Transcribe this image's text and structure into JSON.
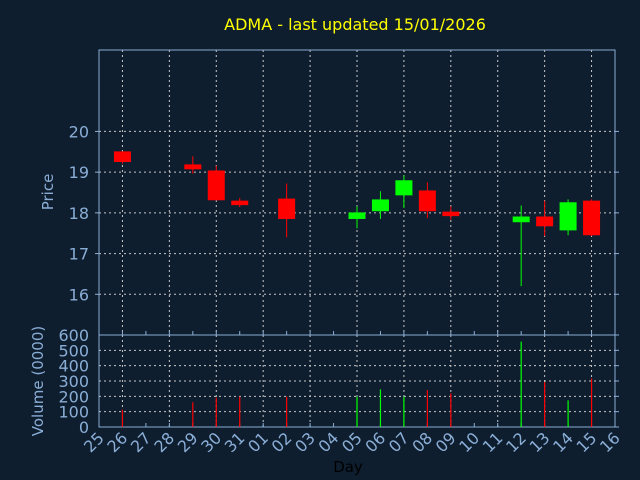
{
  "chart_data": [
    {
      "type": "candlestick",
      "title": "ADMA - last updated 15/01/2026",
      "xlabel": "Day",
      "ylabel": "Price",
      "ylim": [
        15,
        22
      ],
      "yticks": [
        16,
        17,
        18,
        19,
        20
      ],
      "grid": true,
      "x_tick_labels": [
        "25",
        "26",
        "27",
        "28",
        "29",
        "30",
        "31",
        "01",
        "02",
        "03",
        "04",
        "05",
        "06",
        "07",
        "08",
        "09",
        "10",
        "11",
        "12",
        "13",
        "14",
        "15",
        "16"
      ],
      "candles": [
        {
          "day": "26",
          "index": 1,
          "open": 19.51,
          "high": 19.51,
          "low": 19.21,
          "close": 19.25
        },
        {
          "day": "29",
          "index": 4,
          "open": 19.19,
          "high": 19.39,
          "low": 18.96,
          "close": 19.07
        },
        {
          "day": "30",
          "index": 5,
          "open": 19.04,
          "high": 19.16,
          "low": 18.31,
          "close": 18.31
        },
        {
          "day": "31",
          "index": 6,
          "open": 18.3,
          "high": 18.37,
          "low": 18.14,
          "close": 18.19
        },
        {
          "day": "02",
          "index": 8,
          "open": 18.35,
          "high": 18.72,
          "low": 17.4,
          "close": 17.85
        },
        {
          "day": "05",
          "index": 11,
          "open": 17.85,
          "high": 18.16,
          "low": 17.62,
          "close": 18.01
        },
        {
          "day": "06",
          "index": 12,
          "open": 18.04,
          "high": 18.53,
          "low": 17.85,
          "close": 18.33
        },
        {
          "day": "07",
          "index": 13,
          "open": 18.43,
          "high": 18.92,
          "low": 18.12,
          "close": 18.8
        },
        {
          "day": "08",
          "index": 14,
          "open": 18.55,
          "high": 18.75,
          "low": 17.87,
          "close": 18.04
        },
        {
          "day": "09",
          "index": 15,
          "open": 18.03,
          "high": 18.16,
          "low": 17.83,
          "close": 17.92
        },
        {
          "day": "12",
          "index": 18,
          "open": 17.77,
          "high": 18.18,
          "low": 16.2,
          "close": 17.91
        },
        {
          "day": "13",
          "index": 19,
          "open": 17.91,
          "high": 18.3,
          "low": 17.43,
          "close": 17.67
        },
        {
          "day": "14",
          "index": 20,
          "open": 17.57,
          "high": 18.33,
          "low": 17.45,
          "close": 18.26
        },
        {
          "day": "15",
          "index": 21,
          "open": 18.3,
          "high": 18.33,
          "low": 17.43,
          "close": 17.45
        }
      ]
    },
    {
      "type": "bar",
      "ylabel": "Volume (0000)",
      "ylim": [
        0,
        600
      ],
      "yticks": [
        0,
        100,
        200,
        300,
        400,
        500,
        600
      ],
      "volumes": [
        113,
        161,
        191,
        198,
        198,
        198,
        246,
        198,
        241,
        220,
        557,
        293,
        174,
        317
      ]
    }
  ],
  "colors": {
    "background": "#0f1e2f",
    "axis": "#8aaed6",
    "grid": "#c8c8c8",
    "title": "#ffff00",
    "up": "#00ff00",
    "down": "#ff0000",
    "xlabel": "#000000"
  }
}
